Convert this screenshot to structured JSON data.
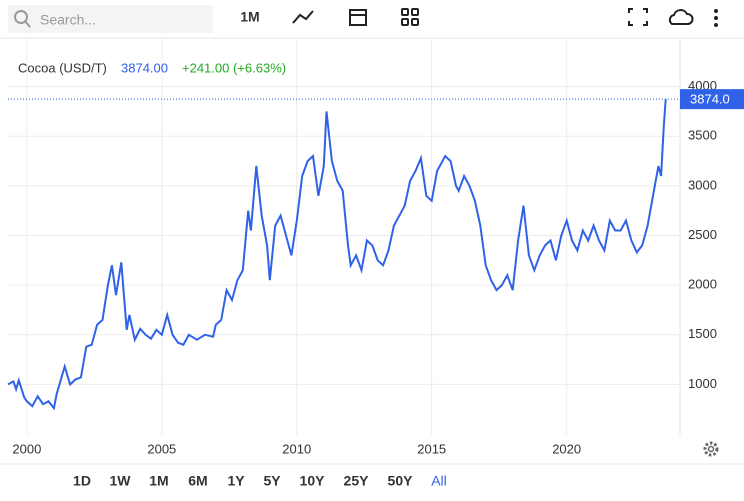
{
  "toolbar": {
    "search_placeholder": "Search...",
    "interval": "1M"
  },
  "chart_data": {
    "type": "line",
    "x": [
      1999.3,
      1999.5,
      1999.6,
      1999.7,
      1999.9,
      2000.0,
      2000.2,
      2000.4,
      2000.6,
      2000.8,
      2001.0,
      2001.1,
      2001.4,
      2001.6,
      2001.8,
      2002.0,
      2002.2,
      2002.4,
      2002.6,
      2002.8,
      2003.0,
      2003.15,
      2003.3,
      2003.5,
      2003.7,
      2003.8,
      2004.0,
      2004.2,
      2004.4,
      2004.6,
      2004.8,
      2005.0,
      2005.2,
      2005.4,
      2005.6,
      2005.8,
      2006.0,
      2006.3,
      2006.6,
      2006.9,
      2007.0,
      2007.2,
      2007.4,
      2007.6,
      2007.8,
      2008.0,
      2008.2,
      2008.3,
      2008.5,
      2008.7,
      2008.9,
      2009.0,
      2009.2,
      2009.4,
      2009.6,
      2009.8,
      2010.0,
      2010.2,
      2010.4,
      2010.6,
      2010.8,
      2011.0,
      2011.1,
      2011.3,
      2011.5,
      2011.7,
      2011.9,
      2012.0,
      2012.2,
      2012.4,
      2012.6,
      2012.8,
      2013.0,
      2013.2,
      2013.4,
      2013.6,
      2013.8,
      2014.0,
      2014.2,
      2014.4,
      2014.6,
      2014.8,
      2015.0,
      2015.2,
      2015.5,
      2015.7,
      2015.9,
      2016.0,
      2016.2,
      2016.4,
      2016.6,
      2016.8,
      2017.0,
      2017.2,
      2017.4,
      2017.6,
      2017.8,
      2018.0,
      2018.2,
      2018.4,
      2018.6,
      2018.8,
      2019.0,
      2019.2,
      2019.4,
      2019.6,
      2019.8,
      2020.0,
      2020.2,
      2020.4,
      2020.6,
      2020.8,
      2021.0,
      2021.2,
      2021.4,
      2021.6,
      2021.8,
      2022.0,
      2022.2,
      2022.4,
      2022.6,
      2022.8,
      2023.0,
      2023.2,
      2023.4,
      2023.5,
      2023.6,
      2023.67
    ],
    "series": [
      {
        "name": "Cocoa (USD/T)",
        "color": "#2f62e8",
        "values": [
          1000,
          1030,
          950,
          1040,
          870,
          830,
          780,
          880,
          800,
          830,
          760,
          900,
          1180,
          1000,
          1050,
          1070,
          1380,
          1400,
          1600,
          1650,
          2000,
          2200,
          1900,
          2230,
          1550,
          1700,
          1450,
          1560,
          1500,
          1460,
          1550,
          1500,
          1700,
          1500,
          1420,
          1400,
          1500,
          1450,
          1500,
          1480,
          1600,
          1650,
          1950,
          1850,
          2050,
          2150,
          2750,
          2550,
          3200,
          2700,
          2400,
          2050,
          2600,
          2700,
          2500,
          2300,
          2650,
          3100,
          3250,
          3300,
          2900,
          3200,
          3750,
          3250,
          3050,
          2950,
          2400,
          2200,
          2300,
          2150,
          2450,
          2400,
          2250,
          2200,
          2350,
          2600,
          2700,
          2800,
          3050,
          3150,
          3280,
          2900,
          2850,
          3150,
          3300,
          3250,
          3000,
          2950,
          3100,
          3000,
          2850,
          2600,
          2200,
          2050,
          1950,
          2000,
          2100,
          1950,
          2450,
          2800,
          2300,
          2150,
          2300,
          2400,
          2450,
          2250,
          2500,
          2650,
          2450,
          2350,
          2550,
          2450,
          2600,
          2450,
          2350,
          2650,
          2550,
          2550,
          2650,
          2450,
          2330,
          2400,
          2600,
          2900,
          3200,
          3100,
          3600,
          3874
        ]
      }
    ],
    "last_price": "3874.00",
    "change": "+241.00 (+6.63%)",
    "change_color": "#22aa22",
    "price_tag": "3874.0",
    "xlim": [
      1999.3,
      2024.2
    ],
    "ylim": [
      490,
      4490
    ],
    "xticks": [
      2000,
      2005,
      2010,
      2015,
      2020
    ],
    "yticks": [
      1000,
      1500,
      2000,
      2500,
      3000,
      3500,
      4000
    ],
    "grid": true
  },
  "ranges": [
    "1D",
    "1W",
    "1M",
    "6M",
    "1Y",
    "5Y",
    "10Y",
    "25Y",
    "50Y",
    "All"
  ],
  "active_range": 9
}
